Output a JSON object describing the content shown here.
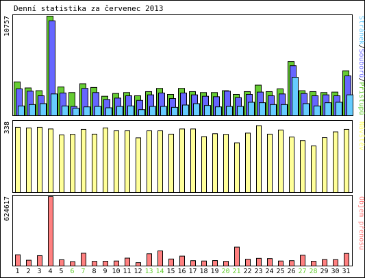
{
  "chart_data": {
    "type": "bar",
    "title": "Denní statistika za červenec 2013",
    "categories": [
      "1",
      "2",
      "3",
      "4",
      "5",
      "6",
      "7",
      "8",
      "9",
      "10",
      "11",
      "12",
      "13",
      "14",
      "15",
      "16",
      "17",
      "18",
      "19",
      "20",
      "21",
      "22",
      "23",
      "24",
      "25",
      "26",
      "27",
      "28",
      "29",
      "30",
      "31"
    ],
    "weekend_days": [
      "6",
      "7",
      "13",
      "14",
      "20",
      "21",
      "27",
      "28"
    ],
    "panels": [
      {
        "name": "pages-files-hits",
        "scale_label": "10757",
        "ylim": [
          0,
          10757
        ],
        "legend": [
          {
            "text": "Stránek",
            "color": "#66ccff"
          },
          {
            "text": "/",
            "color": "#000000"
          },
          {
            "text": "Souborů",
            "color": "#6666ff"
          },
          {
            "text": "/",
            "color": "#000000"
          },
          {
            "text": "Přístupů",
            "color": "#66cc33"
          }
        ],
        "series": [
          {
            "name": "Přístupů",
            "color": "#66cc33",
            "values": [
              3650,
              3000,
              2700,
              10757,
              3100,
              2500,
              3450,
              3050,
              2100,
              2400,
              2500,
              2150,
              2600,
              2950,
              2300,
              2950,
              2600,
              2500,
              2500,
              2700,
              2300,
              2600,
              3300,
              2600,
              2900,
              5850,
              2700,
              2600,
              2500,
              2550,
              4850
            ]
          },
          {
            "name": "Souborů",
            "color": "#6666ff",
            "values": [
              2900,
              2650,
              2150,
              10250,
              2450,
              1000,
              2950,
              2500,
              1750,
              1900,
              2150,
              1650,
              2250,
              2450,
              1850,
              2450,
              2250,
              2100,
              2050,
              2650,
              1950,
              2300,
              2550,
              2150,
              2350,
              5400,
              2400,
              2150,
              2250,
              2150,
              4300
            ]
          },
          {
            "name": "Stránek",
            "color": "#66ccff",
            "values": [
              1050,
              1200,
              1300,
              2350,
              1050,
              800,
              950,
              1000,
              850,
              1000,
              1050,
              650,
              1000,
              1000,
              900,
              1150,
              1300,
              1100,
              950,
              1000,
              1000,
              1450,
              1400,
              1200,
              1200,
              4150,
              1300,
              1050,
              1400,
              1450,
              2250
            ]
          }
        ]
      },
      {
        "name": "visits",
        "scale_label": "338",
        "ylim": [
          0,
          338
        ],
        "legend": [
          {
            "text": "Návštěv",
            "color": "#ffff66"
          }
        ],
        "series": [
          {
            "name": "Návštěv",
            "color": "#ffff99",
            "values": [
              315,
              312,
              315,
              307,
              278,
              281,
              305,
              282,
              312,
              298,
              298,
              264,
              298,
              298,
              282,
              307,
              307,
              270,
              284,
              281,
              240,
              287,
              323,
              282,
              302,
              268,
              251,
              225,
              265,
              293,
              305
            ]
          }
        ]
      },
      {
        "name": "traffic",
        "scale_label": "624617",
        "ylim": [
          0,
          624617
        ],
        "legend": [
          {
            "text": "Objem přenosu",
            "color": "#ff8080"
          }
        ],
        "series": [
          {
            "name": "Objem přenosu",
            "color": "#ff8080",
            "values": [
              101000,
              52000,
              93000,
              624617,
              56000,
              39000,
              115000,
              42000,
              43000,
              45000,
              71000,
              30000,
              110000,
              136000,
              63000,
              89000,
              48000,
              45000,
              49000,
              42000,
              170000,
              61000,
              69000,
              67000,
              45000,
              48000,
              97000,
              43000,
              58000,
              57000,
              113000
            ]
          }
        ]
      }
    ]
  }
}
